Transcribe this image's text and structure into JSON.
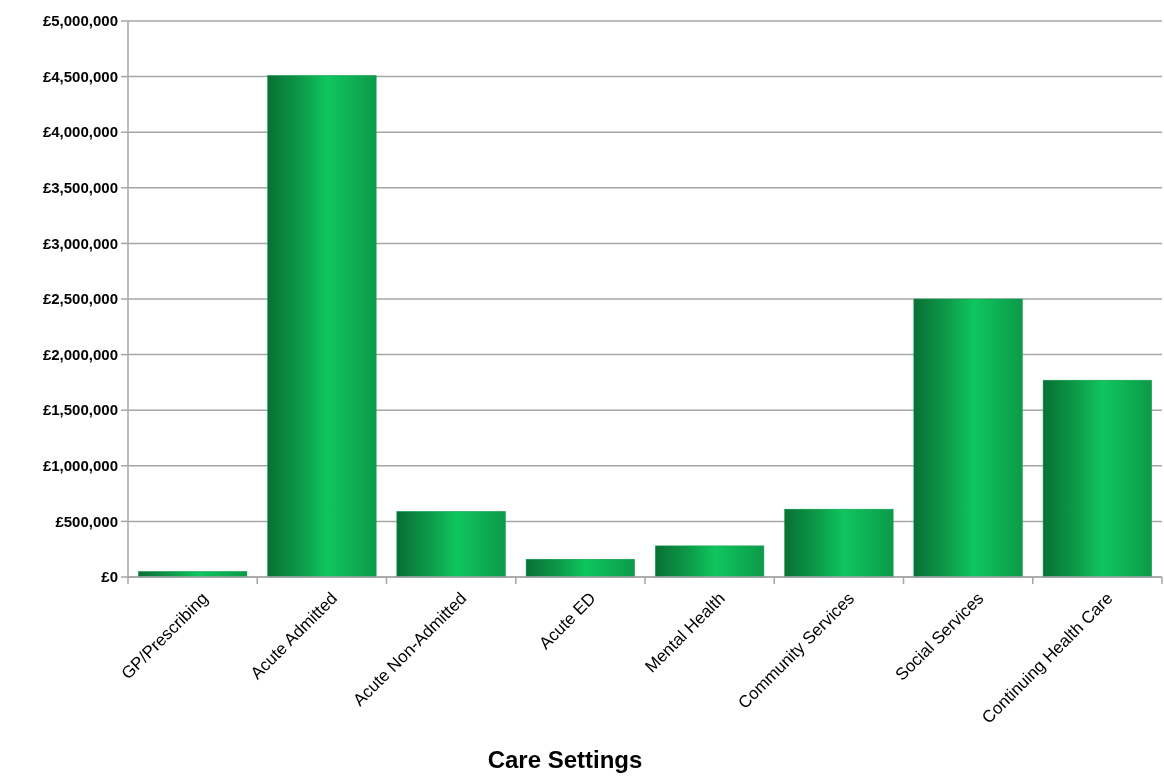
{
  "chart_data": {
    "type": "bar",
    "xlabel": "Care Settings",
    "categories": [
      "GP/Prescribing",
      "Acute Admitted",
      "Acute Non-Admitted",
      "Acute ED",
      "Mental Health",
      "Community Services",
      "Social Services",
      "Continuing Health Care"
    ],
    "values": [
      50000,
      4510000,
      590000,
      160000,
      280000,
      610000,
      2500000,
      1770000
    ],
    "color": "#0c9a49",
    "ylim": [
      0,
      5000000
    ],
    "yticks": [
      {
        "value": 0,
        "label": "£0"
      },
      {
        "value": 500000,
        "label": "£500,000"
      },
      {
        "value": 1000000,
        "label": "£1,000,000"
      },
      {
        "value": 1500000,
        "label": "£1,500,000"
      },
      {
        "value": 2000000,
        "label": "£2,000,000"
      },
      {
        "value": 2500000,
        "label": "£2,500,000"
      },
      {
        "value": 3000000,
        "label": "£3,000,000"
      },
      {
        "value": 3500000,
        "label": "£3,500,000"
      },
      {
        "value": 4000000,
        "label": "£4,000,000"
      },
      {
        "value": 4500000,
        "label": "£4,500,000"
      },
      {
        "value": 5000000,
        "label": "£5,000,000"
      }
    ],
    "grid": "y"
  }
}
